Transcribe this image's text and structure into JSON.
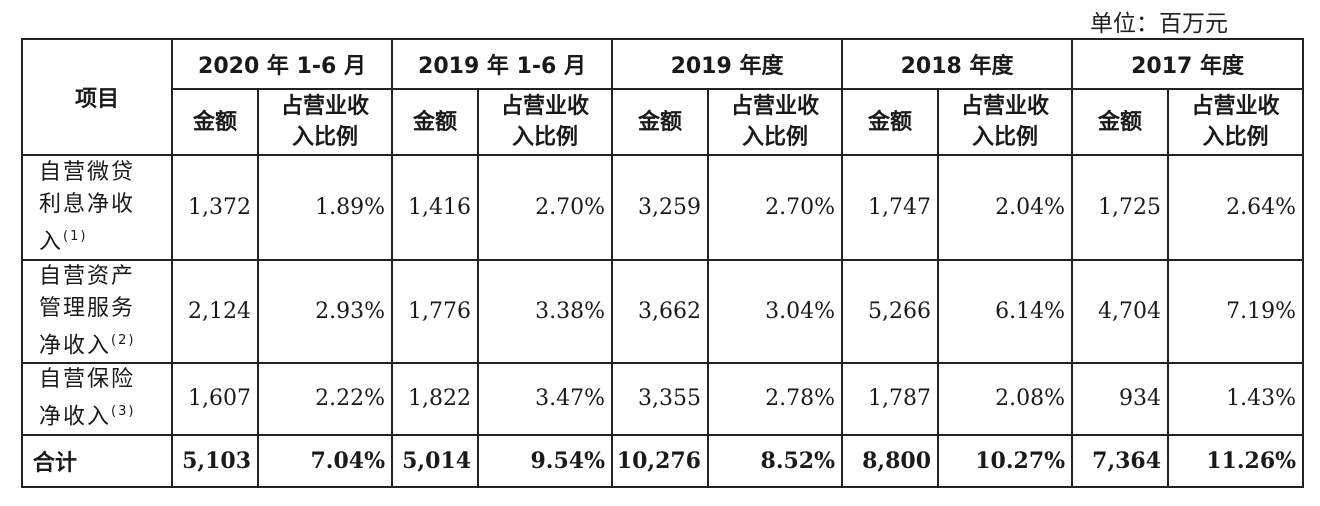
{
  "unit_label": "单位：百万元",
  "header": {
    "item": "项目",
    "periods": [
      "2020 年 1-6 月",
      "2019 年 1-6 月",
      "2019 年度",
      "2018 年度",
      "2017 年度"
    ],
    "amount": "金额",
    "ratio_line1": "占营业收",
    "ratio_line2": "入比例"
  },
  "rows": [
    {
      "label_lines": [
        "自营微贷",
        "利息净收",
        "入"
      ],
      "note": "(1)",
      "cells": [
        "1,372",
        "1.89%",
        "1,416",
        "2.70%",
        "3,259",
        "2.70%",
        "1,747",
        "2.04%",
        "1,725",
        "2.64%"
      ]
    },
    {
      "label_lines": [
        "自营资产",
        "管理服务",
        "净收入"
      ],
      "note": "(2)",
      "cells": [
        "2,124",
        "2.93%",
        "1,776",
        "3.38%",
        "3,662",
        "3.04%",
        "5,266",
        "6.14%",
        "4,704",
        "7.19%"
      ]
    },
    {
      "label_lines": [
        "自营保险",
        "净收入"
      ],
      "note": "(3)",
      "cells": [
        "1,607",
        "2.22%",
        "1,822",
        "3.47%",
        "3,355",
        "2.78%",
        "1,787",
        "2.08%",
        "934",
        "1.43%"
      ]
    }
  ],
  "total": {
    "label": "合计",
    "cells": [
      "5,103",
      "7.04%",
      "5,014",
      "9.54%",
      "10,276",
      "8.52%",
      "8,800",
      "10.27%",
      "7,364",
      "11.26%"
    ]
  }
}
